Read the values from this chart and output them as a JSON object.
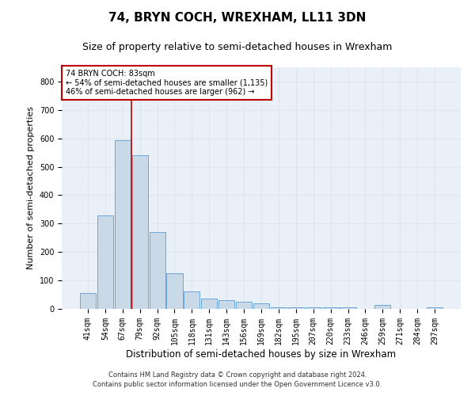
{
  "title": "74, BRYN COCH, WREXHAM, LL11 3DN",
  "subtitle": "Size of property relative to semi-detached houses in Wrexham",
  "xlabel": "Distribution of semi-detached houses by size in Wrexham",
  "ylabel": "Number of semi-detached properties",
  "footer1": "Contains HM Land Registry data © Crown copyright and database right 2024.",
  "footer2": "Contains public sector information licensed under the Open Government Licence v3.0.",
  "bar_labels": [
    "41sqm",
    "54sqm",
    "67sqm",
    "79sqm",
    "92sqm",
    "105sqm",
    "118sqm",
    "131sqm",
    "143sqm",
    "156sqm",
    "169sqm",
    "182sqm",
    "195sqm",
    "207sqm",
    "220sqm",
    "233sqm",
    "246sqm",
    "259sqm",
    "271sqm",
    "284sqm",
    "297sqm"
  ],
  "bar_values": [
    55,
    330,
    595,
    540,
    270,
    125,
    60,
    35,
    30,
    25,
    20,
    5,
    5,
    5,
    5,
    5,
    0,
    15,
    0,
    0,
    5
  ],
  "bar_color": "#c9d9e8",
  "bar_edgecolor": "#5b9bd5",
  "highlight_color": "#c00000",
  "annotation_line1": "74 BRYN COCH: 83sqm",
  "annotation_line2": "← 54% of semi-detached houses are smaller (1,135)",
  "annotation_line3": "46% of semi-detached houses are larger (962) →",
  "annotation_box_color": "#c00000",
  "ylim": [
    0,
    850
  ],
  "yticks": [
    0,
    100,
    200,
    300,
    400,
    500,
    600,
    700,
    800
  ],
  "grid_color": "#dce6f1",
  "background_color": "#eaf0f8",
  "title_fontsize": 11,
  "subtitle_fontsize": 9,
  "tick_fontsize": 7,
  "ylabel_fontsize": 8,
  "xlabel_fontsize": 8.5,
  "red_line_x": 2.5
}
